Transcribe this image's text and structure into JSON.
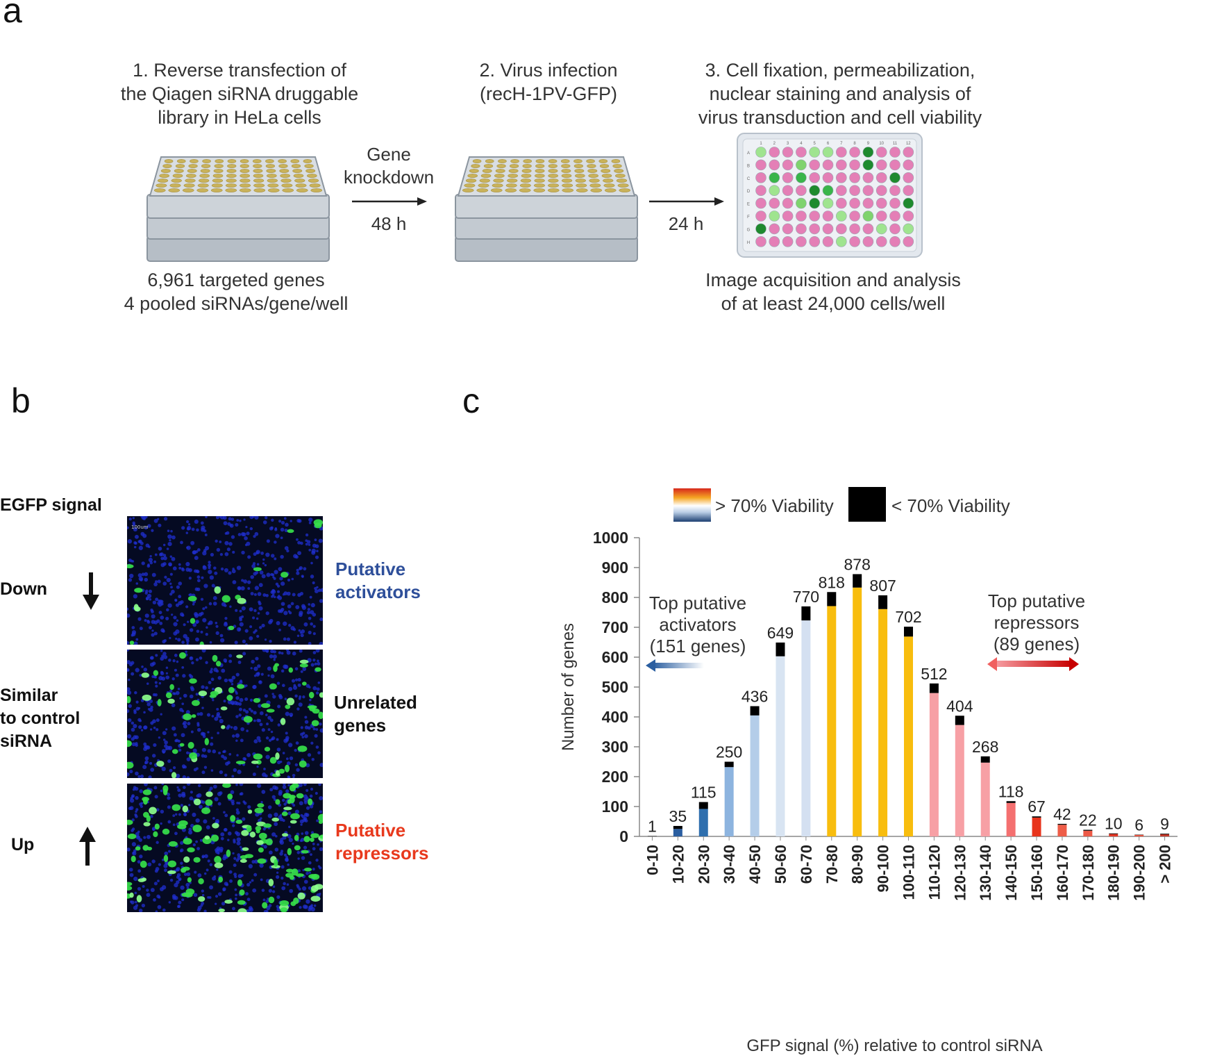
{
  "panel_a": {
    "letter": "a",
    "step1": "1. Reverse transfection of\nthe Qiagen siRNA druggable\nlibrary in HeLa cells",
    "step2": "2. Virus infection\n(recH-1PV-GFP)",
    "step3": "3. Cell fixation, permeabilization,\nnuclear staining and analysis of\nvirus transduction and cell viability",
    "arrow1_top": "Gene\nknockdown",
    "arrow1_bottom": "48 h",
    "arrow2_bottom": "24 h",
    "note1": "6,961 targeted genes\n4 pooled siRNAs/gene/well",
    "note3": "Image acquisition and analysis\nof at least 24,000 cells/well",
    "plate_rows": [
      "A",
      "B",
      "C",
      "D",
      "E",
      "F",
      "G",
      "H"
    ],
    "plate_cols": [
      "1",
      "2",
      "3",
      "4",
      "5",
      "6",
      "7",
      "8",
      "9",
      "10",
      "11",
      "12"
    ]
  },
  "panel_b": {
    "letter": "b",
    "header": "EGFP signal",
    "rows": [
      {
        "label": "Down",
        "category": "Putative\nactivators",
        "color": "#2e4f9a"
      },
      {
        "label": "Similar\n to control\n siRNA",
        "category": "Unrelated\ngenes",
        "color": "#111111"
      },
      {
        "label": "Up",
        "category": "Putative\nrepressors",
        "color": "#e8391d"
      }
    ],
    "scale_bar": "100um"
  },
  "panel_c": {
    "letter": "c",
    "legend_viable": "> 70% Viability",
    "legend_nonviable": "< 70% Viability",
    "activators_note": "Top putative\nactivators\n(151 genes)",
    "repressors_note": "Top putative\nrepressors\n(89 genes)"
  },
  "chart_data": {
    "type": "bar",
    "stacked": true,
    "title": "",
    "xlabel": "GFP signal (%) relative to control siRNA",
    "ylabel": "Number of genes",
    "ylim": [
      0,
      1000
    ],
    "yticks": [
      0,
      100,
      200,
      300,
      400,
      500,
      600,
      700,
      800,
      900,
      1000
    ],
    "categories": [
      "0-10",
      "10-20",
      "20-30",
      "30-40",
      "40-50",
      "50-60",
      "60-70",
      "70-80",
      "80-90",
      "90-100",
      "100-110",
      "110-120",
      "120-130",
      "130-140",
      "140-150",
      "150-160",
      "160-170",
      "170-180",
      "180-190",
      "190-200",
      "> 200"
    ],
    "totals": [
      1,
      35,
      115,
      250,
      436,
      649,
      770,
      818,
      878,
      807,
      702,
      512,
      404,
      268,
      118,
      67,
      42,
      22,
      10,
      6,
      9
    ],
    "series": [
      {
        "name": "> 70% Viability",
        "values": [
          0,
          25,
          92,
          232,
          405,
          603,
          723,
          771,
          833,
          761,
          669,
          480,
          373,
          247,
          112,
          63,
          39,
          19,
          8,
          5,
          7
        ]
      },
      {
        "name": "< 70% Viability",
        "values": [
          1,
          10,
          23,
          18,
          31,
          46,
          47,
          47,
          45,
          46,
          33,
          32,
          31,
          21,
          6,
          4,
          3,
          3,
          2,
          1,
          2
        ]
      }
    ],
    "viable_colors": [
      "#1a3f73",
      "#2a5ea0",
      "#2f6fae",
      "#8db4df",
      "#b4cde9",
      "#d8e4f2",
      "#d4e0f1",
      "#f8bd0e",
      "#f8bd0e",
      "#f8bd0e",
      "#f8bd0e",
      "#f7a0a5",
      "#f7a0a5",
      "#f7a0a5",
      "#f47070",
      "#e8341c",
      "#ee5d48",
      "#ec5a47",
      "#e33826",
      "#e75542",
      "#c0392b"
    ],
    "nonviable_color": "#000000"
  }
}
